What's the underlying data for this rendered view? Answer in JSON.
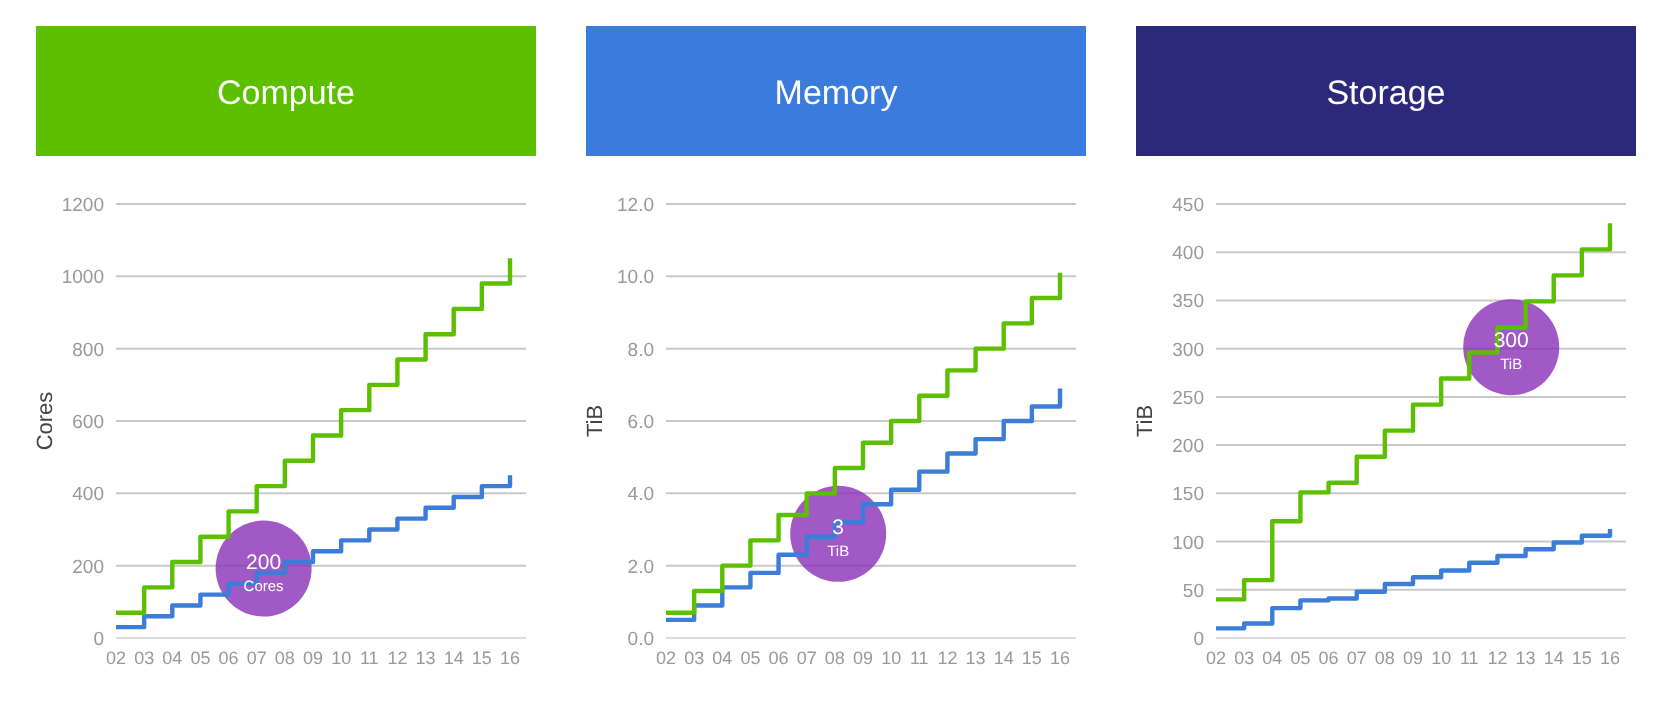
{
  "chart_data": [
    {
      "type": "step",
      "title": "Compute",
      "ylabel": "Cores",
      "categories": [
        "02",
        "03",
        "04",
        "05",
        "06",
        "07",
        "08",
        "09",
        "10",
        "11",
        "12",
        "13",
        "14",
        "15",
        "16"
      ],
      "ylim": [
        0,
        1200
      ],
      "yticks": [
        0,
        200,
        400,
        600,
        800,
        1000,
        1200
      ],
      "grid": "y",
      "series": [
        {
          "color": "#3b7dd8",
          "values": [
            30,
            60,
            90,
            120,
            150,
            180,
            210,
            240,
            270,
            300,
            330,
            360,
            390,
            420,
            450
          ]
        },
        {
          "color": "#5cbf00",
          "values": [
            70,
            140,
            210,
            280,
            350,
            420,
            490,
            560,
            630,
            700,
            770,
            840,
            910,
            980,
            1050
          ]
        }
      ],
      "annotations": [
        "200 Cores"
      ]
    },
    {
      "type": "step",
      "title": "Memory",
      "ylabel": "TiB",
      "categories": [
        "02",
        "03",
        "04",
        "05",
        "06",
        "07",
        "08",
        "09",
        "10",
        "11",
        "12",
        "13",
        "14",
        "15",
        "16"
      ],
      "ylim": [
        0,
        12
      ],
      "yticks": [
        {
          "value": 0,
          "label": "0.0"
        },
        {
          "value": 2,
          "label": "2.0"
        },
        {
          "value": 4,
          "label": "4.0"
        },
        {
          "value": 6,
          "label": "6.0"
        },
        {
          "value": 8,
          "label": "8.0"
        },
        {
          "value": 10,
          "label": "10.0"
        },
        {
          "value": 12,
          "label": "12.0"
        }
      ],
      "grid": "y",
      "series": [
        {
          "color": "#3b7dd8",
          "values": [
            0.5,
            0.9,
            1.4,
            1.8,
            2.3,
            2.8,
            3.2,
            3.7,
            4.1,
            4.6,
            5.1,
            5.5,
            6.0,
            6.4,
            6.9
          ]
        },
        {
          "color": "#5cbf00",
          "values": [
            0.7,
            1.3,
            2.0,
            2.7,
            3.4,
            4.0,
            4.7,
            5.4,
            6.0,
            6.7,
            7.4,
            8.0,
            8.7,
            9.4,
            10.1
          ]
        }
      ],
      "annotations": [
        "3 TiB"
      ]
    },
    {
      "type": "step",
      "title": "Storage",
      "ylabel": "TiB",
      "categories": [
        "02",
        "03",
        "04",
        "05",
        "06",
        "07",
        "08",
        "09",
        "10",
        "11",
        "12",
        "13",
        "14",
        "15",
        "16"
      ],
      "ylim": [
        0,
        450
      ],
      "yticks": [
        0,
        50,
        100,
        150,
        200,
        250,
        300,
        350,
        400,
        450
      ],
      "grid": "y",
      "series": [
        {
          "color": "#3b7dd8",
          "values": [
            10,
            15,
            31,
            39,
            41,
            48,
            56,
            63,
            70,
            78,
            85,
            92,
            99,
            106,
            113
          ]
        },
        {
          "color": "#5cbf00",
          "values": [
            40,
            60,
            121,
            151,
            161,
            188,
            215,
            242,
            269,
            296,
            322,
            349,
            376,
            403,
            430
          ]
        }
      ],
      "annotations": [
        "300 TiB"
      ]
    }
  ]
}
